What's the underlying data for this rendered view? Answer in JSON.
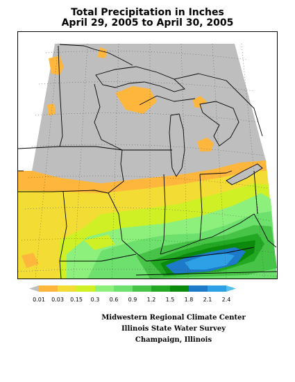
{
  "header": {
    "title_line1": "Total Precipitation in Inches",
    "title_line2": "April 29, 2005 to April 30, 2005"
  },
  "legend": {
    "ticks": [
      "0.01",
      "0.03",
      "0.15",
      "0.3",
      "0.6",
      "0.9",
      "1.2",
      "1.5",
      "1.8",
      "2.1",
      "2.4"
    ],
    "colors": {
      "no_data": "#bebebe",
      "c001": "#ffb63c",
      "c003": "#f3dd35",
      "c015": "#cff025",
      "c03": "#8ef07c",
      "c06": "#6ee06e",
      "c09": "#47c447",
      "c12": "#22a822",
      "c15": "#0c8a0c",
      "c18": "#1c7ac8",
      "c21": "#2ea0e6",
      "c24": "#55bff0"
    }
  },
  "credits": {
    "line1": "Midwestern Regional Climate Center",
    "line2": "Illinois State Water Survey",
    "line3": "Champaign, Illinois"
  }
}
